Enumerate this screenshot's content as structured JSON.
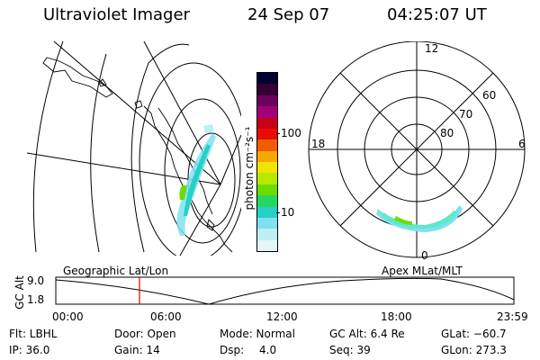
{
  "header": {
    "instrument": "Ultraviolet Imager",
    "date": "24 Sep 07",
    "time": "04:25:07 UT"
  },
  "colorbar": {
    "unit_label": "photon cm⁻²s⁻¹",
    "ticks": [
      "100",
      "10"
    ],
    "colors": [
      "#000033",
      "#330033",
      "#6a0060",
      "#a10078",
      "#c8001a",
      "#e80c00",
      "#f25c00",
      "#f7a800",
      "#f0e400",
      "#b8e800",
      "#6cdc00",
      "#22d860",
      "#24d0c8",
      "#7fe0ee",
      "#bceef4",
      "#e4f6f8"
    ]
  },
  "right_plot": {
    "mlt_labels": {
      "top": "12",
      "left": "18",
      "right": "6",
      "bottom": "0"
    },
    "lat_labels": [
      "60",
      "70",
      "80"
    ],
    "oval_color": "#5ce8cc"
  },
  "timeline": {
    "left_label": "Geographic Lat/Lon",
    "right_label": "Apex MLat/MLT",
    "y_label": "GC Alt",
    "y_ticks": [
      "9.0",
      "1.8"
    ],
    "x_ticks": [
      "00:00",
      "06:00",
      "12:00",
      "18:00",
      "23:59"
    ],
    "marker_color": "#e00000"
  },
  "info": {
    "row1": {
      "flt": "Flt: LBHL",
      "door": "Door: Open",
      "mode": "Mode: Normal",
      "gcalt": "GC Alt: 6.4 Re",
      "glat": "GLat: −60.7"
    },
    "row2": {
      "ip": "IP: 36.0",
      "gain": "Gain: 14",
      "dsp_label": "Dsp:",
      "dsp_value": "4.0",
      "seq": "Seq: 39",
      "glon": "GLon: 273.3"
    }
  }
}
